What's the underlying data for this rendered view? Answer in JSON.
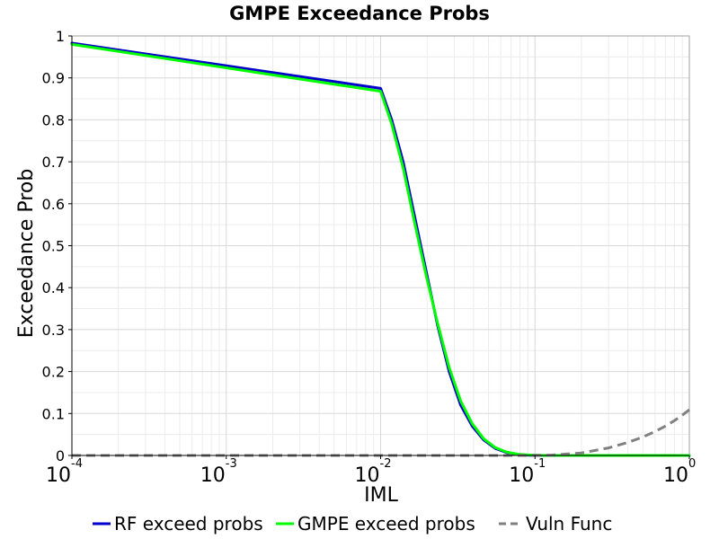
{
  "chart_data": {
    "type": "line",
    "title": "GMPE Exceedance Probs",
    "xlabel": "IML",
    "ylabel": "Exceedance Prob",
    "x_scale": "log",
    "xlim": [
      0.0001,
      1
    ],
    "ylim": [
      0,
      1
    ],
    "grid": true,
    "legend_placement": "bottom",
    "x_ticks": [
      {
        "base": "10",
        "exp": "-4"
      },
      {
        "base": "10",
        "exp": "-3"
      },
      {
        "base": "10",
        "exp": "-2"
      },
      {
        "base": "10",
        "exp": "-1"
      },
      {
        "base": "10",
        "exp": "0"
      }
    ],
    "y_ticks": [
      "0",
      "0.1",
      "0.2",
      "0.3",
      "0.4",
      "0.5",
      "0.6",
      "0.7",
      "0.8",
      "0.9",
      "1"
    ],
    "series": [
      {
        "name": "RF exceed probs",
        "color": "#0000cc",
        "style": "solid",
        "points": [
          [
            0.0001,
            0.983
          ],
          [
            0.01,
            0.875
          ],
          [
            0.0118,
            0.8
          ],
          [
            0.014,
            0.7
          ],
          [
            0.0166,
            0.57
          ],
          [
            0.0197,
            0.44
          ],
          [
            0.0234,
            0.31
          ],
          [
            0.0278,
            0.2
          ],
          [
            0.033,
            0.12
          ],
          [
            0.0392,
            0.07
          ],
          [
            0.0465,
            0.037
          ],
          [
            0.0552,
            0.017
          ],
          [
            0.0655,
            0.007
          ],
          [
            0.0777,
            0.002
          ],
          [
            0.0922,
            0.0006
          ],
          [
            0.11,
            0.0001
          ],
          [
            0.2,
            0
          ],
          [
            0.5,
            0
          ],
          [
            1,
            0
          ]
        ]
      },
      {
        "name": "GMPE exceed probs",
        "color": "#00ff00",
        "style": "solid",
        "points": [
          [
            0.0001,
            0.98
          ],
          [
            0.01,
            0.868
          ],
          [
            0.0118,
            0.79
          ],
          [
            0.014,
            0.685
          ],
          [
            0.0166,
            0.555
          ],
          [
            0.0197,
            0.43
          ],
          [
            0.0234,
            0.315
          ],
          [
            0.0278,
            0.21
          ],
          [
            0.033,
            0.13
          ],
          [
            0.0392,
            0.076
          ],
          [
            0.0465,
            0.04
          ],
          [
            0.0552,
            0.019
          ],
          [
            0.0655,
            0.008
          ],
          [
            0.0777,
            0.003
          ],
          [
            0.0922,
            0.001
          ],
          [
            0.11,
            0.0002
          ],
          [
            0.2,
            0
          ],
          [
            0.5,
            0
          ],
          [
            1,
            0
          ]
        ]
      },
      {
        "name": "Vuln Func",
        "color": "#808080",
        "style": "dashed",
        "points": [
          [
            0.0001,
            0
          ],
          [
            0.01,
            0
          ],
          [
            0.05,
            0
          ],
          [
            0.1,
            0
          ],
          [
            0.13,
            0.001
          ],
          [
            0.2,
            0.006
          ],
          [
            0.3,
            0.018
          ],
          [
            0.4,
            0.031
          ],
          [
            0.5,
            0.044
          ],
          [
            0.6,
            0.057
          ],
          [
            0.7,
            0.07
          ],
          [
            0.8,
            0.083
          ],
          [
            0.9,
            0.096
          ],
          [
            1,
            0.109
          ]
        ]
      }
    ]
  }
}
